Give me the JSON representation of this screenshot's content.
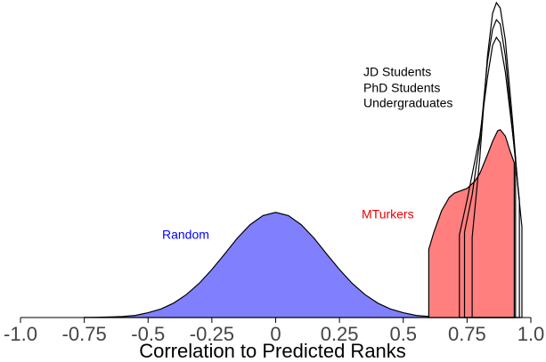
{
  "chart_data": {
    "type": "density",
    "xlabel": "Correlation to Predicted Ranks",
    "xlim": [
      -1,
      1
    ],
    "xticks": [
      {
        "value": -1,
        "label": "-1.0"
      },
      -0.75,
      -0.5,
      -0.25,
      0,
      0.25,
      0.5,
      0.75,
      {
        "value": 1,
        "label": "1.0"
      }
    ],
    "ylim": [
      0,
      5.9
    ],
    "series": [
      {
        "name": "Random",
        "color": "#8080ff",
        "fill": true,
        "x": [
          -0.75,
          -0.7,
          -0.65,
          -0.6,
          -0.55,
          -0.5,
          -0.45,
          -0.4,
          -0.35,
          -0.3,
          -0.25,
          -0.2,
          -0.15,
          -0.1,
          -0.05,
          0,
          0.05,
          0.1,
          0.15,
          0.2,
          0.25,
          0.3,
          0.35,
          0.4,
          0.45,
          0.5,
          0.55,
          0.6,
          0.65,
          0.7,
          0.75
        ],
        "values": [
          0.002,
          0.004,
          0.01,
          0.02,
          0.04,
          0.09,
          0.16,
          0.27,
          0.43,
          0.64,
          0.9,
          1.19,
          1.49,
          1.74,
          1.91,
          1.97,
          1.91,
          1.74,
          1.49,
          1.19,
          0.9,
          0.64,
          0.43,
          0.27,
          0.16,
          0.09,
          0.04,
          0.02,
          0.01,
          0.004,
          0.002
        ]
      },
      {
        "name": "MTurkers",
        "color": "#ff7f7f",
        "fill": true,
        "x": [
          0.6,
          0.62,
          0.65,
          0.68,
          0.7,
          0.75,
          0.78,
          0.8,
          0.83,
          0.85,
          0.87,
          0.88,
          0.9,
          0.92,
          0.935
        ],
        "values": [
          1.28,
          1.6,
          2.0,
          2.25,
          2.33,
          2.42,
          2.55,
          2.7,
          3.05,
          3.3,
          3.5,
          3.52,
          3.4,
          3.1,
          2.9
        ]
      },
      {
        "name": "JD Students",
        "color": "#000000",
        "fill": false,
        "x": [
          0.77,
          0.8,
          0.83,
          0.85,
          0.865,
          0.88,
          0.9,
          0.93,
          0.95,
          0.965
        ],
        "values": [
          1.5,
          3.0,
          4.9,
          5.7,
          5.9,
          5.8,
          5.2,
          3.6,
          2.4,
          1.7
        ]
      },
      {
        "name": "PhD Students",
        "color": "#000000",
        "fill": false,
        "x": [
          0.74,
          0.77,
          0.8,
          0.83,
          0.85,
          0.865,
          0.88,
          0.9,
          0.93,
          0.955
        ],
        "values": [
          1.6,
          2.3,
          3.3,
          4.8,
          5.4,
          5.58,
          5.5,
          4.9,
          3.4,
          2.2
        ]
      },
      {
        "name": "Undergraduates",
        "color": "#000000",
        "fill": false,
        "x": [
          0.72,
          0.75,
          0.8,
          0.83,
          0.85,
          0.865,
          0.88,
          0.9,
          0.92,
          0.94
        ],
        "values": [
          1.55,
          2.2,
          3.4,
          4.5,
          5.1,
          5.25,
          5.15,
          4.6,
          3.8,
          3.0
        ]
      }
    ]
  }
}
